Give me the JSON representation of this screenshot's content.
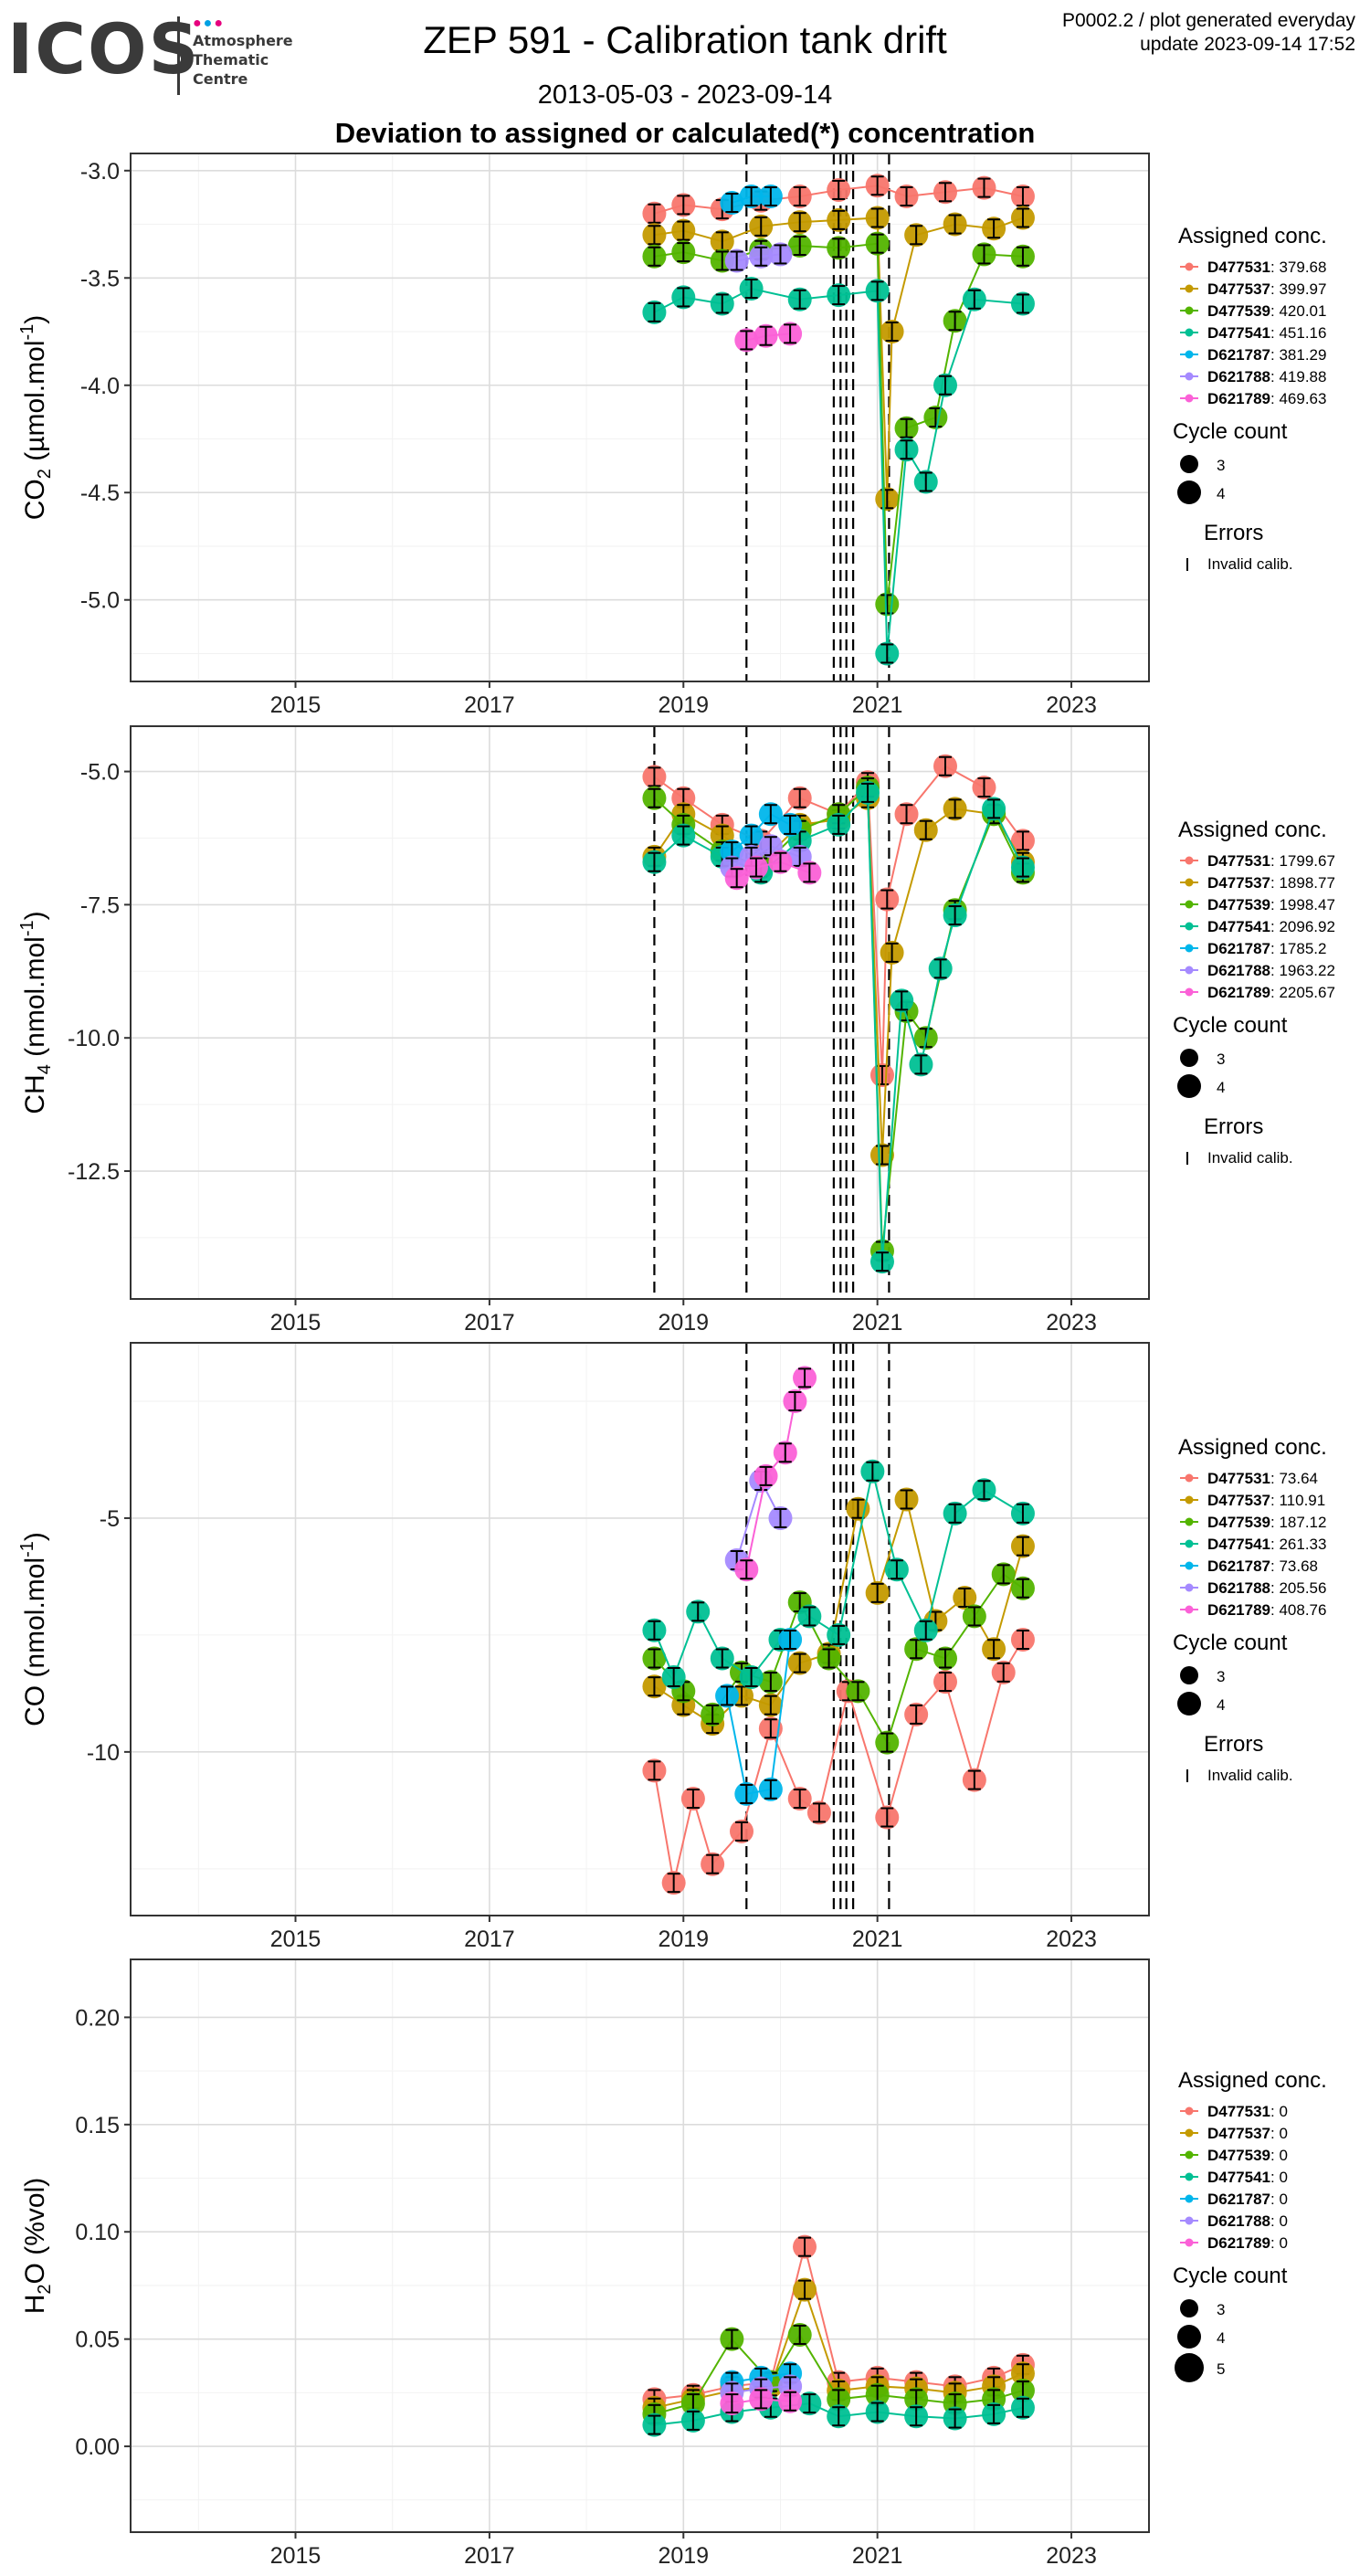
{
  "header": {
    "logo_text": "ICOS",
    "logo_sub": "Atmosphere\nThematic\nCentre",
    "title": "ZEP 591 - Calibration tank drift",
    "date_range": "2013-05-03 - 2023-09-14",
    "subtitle": "Deviation to assigned or calculated(*) concentration",
    "meta_line1": "P0002.2 / plot generated everyday",
    "meta_line2": "update  2023-09-14 17:52"
  },
  "colors": {
    "D477531": "#F8766D",
    "D477537": "#C49A00",
    "D477539": "#53B400",
    "D477541": "#00C094",
    "D621787": "#00B6EB",
    "D621788": "#A58AFF",
    "D621789": "#FB61D7",
    "logo_dots": [
      "#e6007e",
      "#00a0e3",
      "#e6007e"
    ]
  },
  "chart_data": [
    {
      "type": "scatter",
      "gas": "CO",
      "gas_sub": "2",
      "ylabel_units": " (µmol.mol",
      "ylabel_exp": "-1",
      "yticks": [
        "-3.0",
        "-3.5",
        "-4.0",
        "-4.5",
        "-5.0"
      ],
      "ytick_values": [
        -3.0,
        -3.5,
        -4.0,
        -4.5,
        -5.0
      ],
      "ylim": [
        -5.38,
        -2.92
      ],
      "xticks": [
        "2015",
        "2017",
        "2019",
        "2021",
        "2023"
      ],
      "xtick_values": [
        2015,
        2017,
        2019,
        2021,
        2023
      ],
      "xlim": [
        2013.3,
        2023.8
      ],
      "grid": true,
      "vlines": [
        2019.65,
        2020.55,
        2020.62,
        2020.68,
        2020.75,
        2021.12
      ],
      "legend": {
        "title": "Assigned conc.",
        "entries": [
          [
            "D477531",
            ": 379.68"
          ],
          [
            "D477537",
            ": 399.97"
          ],
          [
            "D477539",
            ": 420.01"
          ],
          [
            "D477541",
            ": 451.16"
          ],
          [
            "D621787",
            ": 381.29"
          ],
          [
            "D621788",
            ": 419.88"
          ],
          [
            "D621789",
            ": 469.63"
          ]
        ],
        "cycle_title": "Cycle count",
        "cycle_labels": [
          "3",
          "4"
        ],
        "errors_title": "Errors",
        "errors_label": "Invalid calib."
      },
      "series": [
        {
          "name": "D477531",
          "x": [
            2018.7,
            2019.0,
            2019.4,
            2019.8,
            2020.2,
            2020.6,
            2021.0,
            2021.3,
            2021.7,
            2022.1,
            2022.5
          ],
          "y": [
            -3.2,
            -3.16,
            -3.18,
            -3.14,
            -3.12,
            -3.09,
            -3.07,
            -3.12,
            -3.1,
            -3.08,
            -3.12
          ]
        },
        {
          "name": "D477537",
          "x": [
            2018.7,
            2019.0,
            2019.4,
            2019.8,
            2020.2,
            2020.6,
            2021.0,
            2021.1,
            2021.15,
            2021.4,
            2021.8,
            2022.2,
            2022.5
          ],
          "y": [
            -3.3,
            -3.28,
            -3.33,
            -3.26,
            -3.24,
            -3.23,
            -3.22,
            -4.53,
            -3.75,
            -3.3,
            -3.25,
            -3.27,
            -3.22
          ]
        },
        {
          "name": "D477539",
          "x": [
            2018.7,
            2019.0,
            2019.4,
            2019.8,
            2020.2,
            2020.6,
            2021.0,
            2021.1,
            2021.3,
            2021.6,
            2021.8,
            2022.1,
            2022.5
          ],
          "y": [
            -3.4,
            -3.38,
            -3.42,
            -3.37,
            -3.35,
            -3.36,
            -3.34,
            -5.02,
            -4.2,
            -4.15,
            -3.7,
            -3.39,
            -3.4
          ]
        },
        {
          "name": "D477541",
          "x": [
            2018.7,
            2019.0,
            2019.4,
            2019.7,
            2020.2,
            2020.6,
            2021.0,
            2021.1,
            2021.3,
            2021.5,
            2021.7,
            2022.0,
            2022.5
          ],
          "y": [
            -3.66,
            -3.59,
            -3.62,
            -3.55,
            -3.6,
            -3.58,
            -3.56,
            -5.25,
            -4.3,
            -4.45,
            -4.0,
            -3.6,
            -3.62
          ]
        },
        {
          "name": "D621787",
          "x": [
            2019.5,
            2019.7,
            2019.9
          ],
          "y": [
            -3.15,
            -3.12,
            -3.12
          ]
        },
        {
          "name": "D621788",
          "x": [
            2019.55,
            2019.8,
            2020.0
          ],
          "y": [
            -3.42,
            -3.4,
            -3.39
          ]
        },
        {
          "name": "D621789",
          "x": [
            2019.65,
            2019.85,
            2020.1
          ],
          "y": [
            -3.79,
            -3.77,
            -3.76
          ]
        }
      ]
    },
    {
      "type": "scatter",
      "gas": "CH",
      "gas_sub": "4",
      "ylabel_units": " (nmol.mol",
      "ylabel_exp": "-1",
      "yticks": [
        "-5.0",
        "-7.5",
        "-10.0",
        "-12.5"
      ],
      "ytick_values": [
        -5.0,
        -7.5,
        -10.0,
        -12.5
      ],
      "ylim": [
        -14.9,
        -4.15
      ],
      "xticks": [
        "2015",
        "2017",
        "2019",
        "2021",
        "2023"
      ],
      "xtick_values": [
        2015,
        2017,
        2019,
        2021,
        2023
      ],
      "xlim": [
        2013.3,
        2023.8
      ],
      "grid": true,
      "vlines": [
        2018.7,
        2019.65,
        2020.55,
        2020.62,
        2020.68,
        2020.75,
        2021.12
      ],
      "legend": {
        "title": "Assigned conc.",
        "entries": [
          [
            "D477531",
            ": 1799.67"
          ],
          [
            "D477537",
            ": 1898.77"
          ],
          [
            "D477539",
            ": 1998.47"
          ],
          [
            "D477541",
            ": 2096.92"
          ],
          [
            "D621787",
            ": 1785.2"
          ],
          [
            "D621788",
            ": 1963.22"
          ],
          [
            "D621789",
            ": 2205.67"
          ]
        ],
        "cycle_title": "Cycle count",
        "cycle_labels": [
          "3",
          "4"
        ],
        "errors_title": "Errors",
        "errors_label": "Invalid calib."
      },
      "series": [
        {
          "name": "D477531",
          "x": [
            2018.7,
            2019.0,
            2019.4,
            2019.8,
            2020.2,
            2020.6,
            2020.9,
            2021.05,
            2021.1,
            2021.3,
            2021.7,
            2022.1,
            2022.5
          ],
          "y": [
            -5.1,
            -5.5,
            -6.0,
            -6.3,
            -5.5,
            -5.8,
            -5.2,
            -10.7,
            -7.4,
            -5.8,
            -4.9,
            -5.3,
            -6.3
          ]
        },
        {
          "name": "D477537",
          "x": [
            2018.7,
            2019.0,
            2019.4,
            2019.8,
            2020.2,
            2020.6,
            2020.9,
            2021.05,
            2021.15,
            2021.5,
            2021.8,
            2022.2,
            2022.5
          ],
          "y": [
            -6.6,
            -5.8,
            -6.2,
            -6.7,
            -6.0,
            -5.9,
            -5.5,
            -12.2,
            -8.4,
            -6.1,
            -5.7,
            -5.8,
            -6.7
          ]
        },
        {
          "name": "D477539",
          "x": [
            2018.7,
            2019.0,
            2019.4,
            2019.8,
            2020.2,
            2020.6,
            2020.9,
            2021.05,
            2021.3,
            2021.5,
            2021.8,
            2022.2,
            2022.5
          ],
          "y": [
            -5.5,
            -6.0,
            -6.5,
            -6.8,
            -6.1,
            -5.8,
            -5.3,
            -14.0,
            -9.5,
            -10.0,
            -7.6,
            -5.8,
            -6.9
          ]
        },
        {
          "name": "D477541",
          "x": [
            2018.7,
            2019.0,
            2019.4,
            2019.8,
            2020.2,
            2020.6,
            2020.9,
            2021.05,
            2021.25,
            2021.45,
            2021.65,
            2021.8,
            2022.2,
            2022.5
          ],
          "y": [
            -6.7,
            -6.2,
            -6.6,
            -6.9,
            -6.3,
            -6.0,
            -5.4,
            -14.2,
            -9.3,
            -10.5,
            -8.7,
            -7.7,
            -5.7,
            -6.8
          ]
        },
        {
          "name": "D621787",
          "x": [
            2019.5,
            2019.7,
            2019.9,
            2020.1
          ],
          "y": [
            -6.5,
            -6.2,
            -5.8,
            -6.0
          ]
        },
        {
          "name": "D621788",
          "x": [
            2019.5,
            2019.7,
            2019.9,
            2020.2
          ],
          "y": [
            -6.8,
            -6.6,
            -6.4,
            -6.6
          ]
        },
        {
          "name": "D621789",
          "x": [
            2019.55,
            2019.75,
            2020.0,
            2020.3
          ],
          "y": [
            -7.0,
            -6.8,
            -6.7,
            -6.9
          ]
        }
      ]
    },
    {
      "type": "scatter",
      "gas": "CO",
      "gas_sub": "",
      "ylabel_units": " (nmol.mol",
      "ylabel_exp": "-1",
      "yticks": [
        "-5",
        "-10"
      ],
      "ytick_values": [
        -5,
        -10
      ],
      "ylim": [
        -13.5,
        -1.25
      ],
      "xticks": [
        "2015",
        "2017",
        "2019",
        "2021",
        "2023"
      ],
      "xtick_values": [
        2015,
        2017,
        2019,
        2021,
        2023
      ],
      "xlim": [
        2013.3,
        2023.8
      ],
      "grid": true,
      "vlines": [
        2019.65,
        2020.55,
        2020.62,
        2020.68,
        2020.75,
        2021.12
      ],
      "legend": {
        "title": "Assigned conc.",
        "entries": [
          [
            "D477531",
            ": 73.64"
          ],
          [
            "D477537",
            ": 110.91"
          ],
          [
            "D477539",
            ": 187.12"
          ],
          [
            "D477541",
            ": 261.33"
          ],
          [
            "D621787",
            ": 73.68"
          ],
          [
            "D621788",
            ": 205.56"
          ],
          [
            "D621789",
            ": 408.76"
          ]
        ],
        "cycle_title": "Cycle count",
        "cycle_labels": [
          "3",
          "4"
        ],
        "errors_title": "Errors",
        "errors_label": "Invalid calib."
      },
      "series": [
        {
          "name": "D477531",
          "x": [
            2018.7,
            2018.9,
            2019.1,
            2019.3,
            2019.6,
            2019.9,
            2020.2,
            2020.4,
            2020.7,
            2021.1,
            2021.4,
            2021.7,
            2022.0,
            2022.3,
            2022.5
          ],
          "y": [
            -10.4,
            -12.8,
            -11.0,
            -12.4,
            -11.7,
            -9.5,
            -11.0,
            -11.3,
            -8.7,
            -11.4,
            -9.2,
            -8.5,
            -10.6,
            -8.3,
            -7.6
          ]
        },
        {
          "name": "D477537",
          "x": [
            2018.7,
            2019.0,
            2019.3,
            2019.6,
            2019.9,
            2020.2,
            2020.5,
            2020.8,
            2021.0,
            2021.3,
            2021.6,
            2021.9,
            2022.2,
            2022.5
          ],
          "y": [
            -8.6,
            -9.0,
            -9.4,
            -8.8,
            -9.0,
            -8.1,
            -7.9,
            -4.8,
            -6.6,
            -4.6,
            -7.2,
            -6.7,
            -7.8,
            -5.6
          ]
        },
        {
          "name": "D477539",
          "x": [
            2018.7,
            2019.0,
            2019.3,
            2019.6,
            2019.9,
            2020.2,
            2020.5,
            2020.8,
            2021.1,
            2021.4,
            2021.7,
            2022.0,
            2022.3,
            2022.5
          ],
          "y": [
            -8.0,
            -8.7,
            -9.2,
            -8.3,
            -8.5,
            -6.8,
            -8.0,
            -8.7,
            -9.8,
            -7.8,
            -8.0,
            -7.1,
            -6.2,
            -6.5
          ]
        },
        {
          "name": "D477541",
          "x": [
            2018.7,
            2018.9,
            2019.15,
            2019.4,
            2019.7,
            2020.0,
            2020.3,
            2020.6,
            2020.95,
            2021.2,
            2021.5,
            2021.8,
            2022.1,
            2022.5
          ],
          "y": [
            -7.4,
            -8.4,
            -7.0,
            -8.0,
            -8.4,
            -7.6,
            -7.1,
            -7.5,
            -4.0,
            -6.1,
            -7.4,
            -4.9,
            -4.4,
            -4.9
          ]
        },
        {
          "name": "D621787",
          "x": [
            2019.45,
            2019.65,
            2019.9,
            2020.1
          ],
          "y": [
            -8.8,
            -10.9,
            -10.8,
            -7.6
          ]
        },
        {
          "name": "D621788",
          "x": [
            2019.55,
            2019.8,
            2020.0
          ],
          "y": [
            -5.9,
            -4.2,
            -5.0
          ]
        },
        {
          "name": "D621789",
          "x": [
            2019.65,
            2019.85,
            2020.05,
            2020.15,
            2020.25
          ],
          "y": [
            -6.1,
            -4.1,
            -3.6,
            -2.5,
            -2.0
          ]
        }
      ]
    },
    {
      "type": "scatter",
      "gas": "H",
      "gas_sub": "2",
      "gas_tail": "O",
      "ylabel_units": " (%vol)",
      "ylabel_exp": "",
      "yticks": [
        "0.20",
        "0.15",
        "0.10",
        "0.05",
        "0.00"
      ],
      "ytick_values": [
        0.2,
        0.15,
        0.1,
        0.05,
        0.0
      ],
      "ylim": [
        -0.04,
        0.227
      ],
      "xticks": [
        "2015",
        "2017",
        "2019",
        "2021",
        "2023"
      ],
      "xtick_values": [
        2015,
        2017,
        2019,
        2021,
        2023
      ],
      "xlim": [
        2013.3,
        2023.8
      ],
      "grid": true,
      "vlines": [],
      "legend": {
        "title": "Assigned conc.",
        "entries": [
          [
            "D477531",
            ": 0"
          ],
          [
            "D477537",
            ": 0"
          ],
          [
            "D477539",
            ": 0"
          ],
          [
            "D477541",
            ": 0"
          ],
          [
            "D621787",
            ": 0"
          ],
          [
            "D621788",
            ": 0"
          ],
          [
            "D621789",
            ": 0"
          ]
        ],
        "cycle_title": "Cycle count",
        "cycle_labels": [
          "3",
          "4",
          "5"
        ],
        "errors_title": "",
        "errors_label": ""
      },
      "series": [
        {
          "name": "D477531",
          "x": [
            2018.7,
            2019.1,
            2019.5,
            2019.9,
            2020.25,
            2020.6,
            2021.0,
            2021.4,
            2021.8,
            2022.2,
            2022.5
          ],
          "y": [
            0.022,
            0.024,
            0.028,
            0.03,
            0.093,
            0.03,
            0.032,
            0.03,
            0.028,
            0.032,
            0.038
          ]
        },
        {
          "name": "D477537",
          "x": [
            2018.7,
            2019.1,
            2019.5,
            2019.9,
            2020.25,
            2020.6,
            2021.0,
            2021.4,
            2021.8,
            2022.2,
            2022.5
          ],
          "y": [
            0.018,
            0.022,
            0.026,
            0.028,
            0.073,
            0.026,
            0.028,
            0.027,
            0.025,
            0.028,
            0.034
          ]
        },
        {
          "name": "D477539",
          "x": [
            2018.7,
            2019.1,
            2019.5,
            2019.9,
            2020.2,
            2020.6,
            2021.0,
            2021.4,
            2021.8,
            2022.2,
            2022.5
          ],
          "y": [
            0.015,
            0.02,
            0.05,
            0.03,
            0.052,
            0.022,
            0.024,
            0.022,
            0.02,
            0.022,
            0.026
          ]
        },
        {
          "name": "D477541",
          "x": [
            2018.7,
            2019.1,
            2019.5,
            2019.9,
            2020.3,
            2020.6,
            2021.0,
            2021.4,
            2021.8,
            2022.2,
            2022.5
          ],
          "y": [
            0.01,
            0.012,
            0.016,
            0.018,
            0.02,
            0.014,
            0.016,
            0.014,
            0.013,
            0.015,
            0.018
          ]
        },
        {
          "name": "D621787",
          "x": [
            2019.5,
            2019.8,
            2020.1
          ],
          "y": [
            0.03,
            0.032,
            0.034
          ]
        },
        {
          "name": "D621788",
          "x": [
            2019.5,
            2019.8,
            2020.1
          ],
          "y": [
            0.025,
            0.027,
            0.028
          ]
        },
        {
          "name": "D621789",
          "x": [
            2019.5,
            2019.8,
            2020.1
          ],
          "y": [
            0.02,
            0.022,
            0.021
          ]
        }
      ]
    }
  ]
}
